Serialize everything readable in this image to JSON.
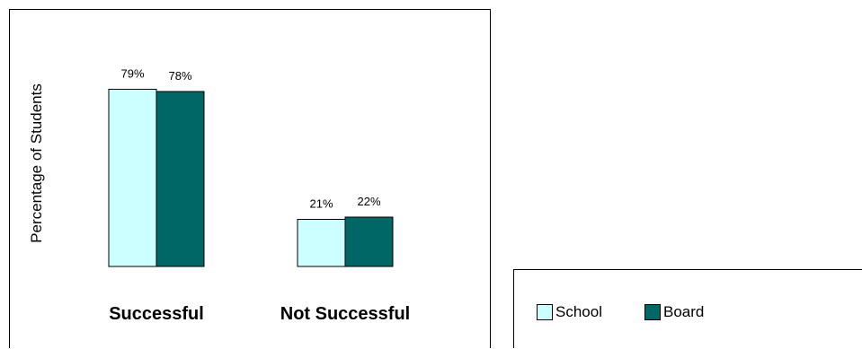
{
  "chart_data": {
    "type": "bar",
    "title": "",
    "xlabel": "",
    "ylabel": "Percentage of Students",
    "ylim": [
      0,
      100
    ],
    "grid": false,
    "legend_position": "bottom-right",
    "categories": [
      "Successful",
      "Not Successful"
    ],
    "series": [
      {
        "name": "School",
        "color": "#ccffff",
        "values": [
          79,
          21
        ],
        "labels": [
          "79%",
          "21%"
        ]
      },
      {
        "name": "Board",
        "color": "#006666",
        "values": [
          78,
          22
        ],
        "labels": [
          "78%",
          "22%"
        ]
      }
    ]
  }
}
